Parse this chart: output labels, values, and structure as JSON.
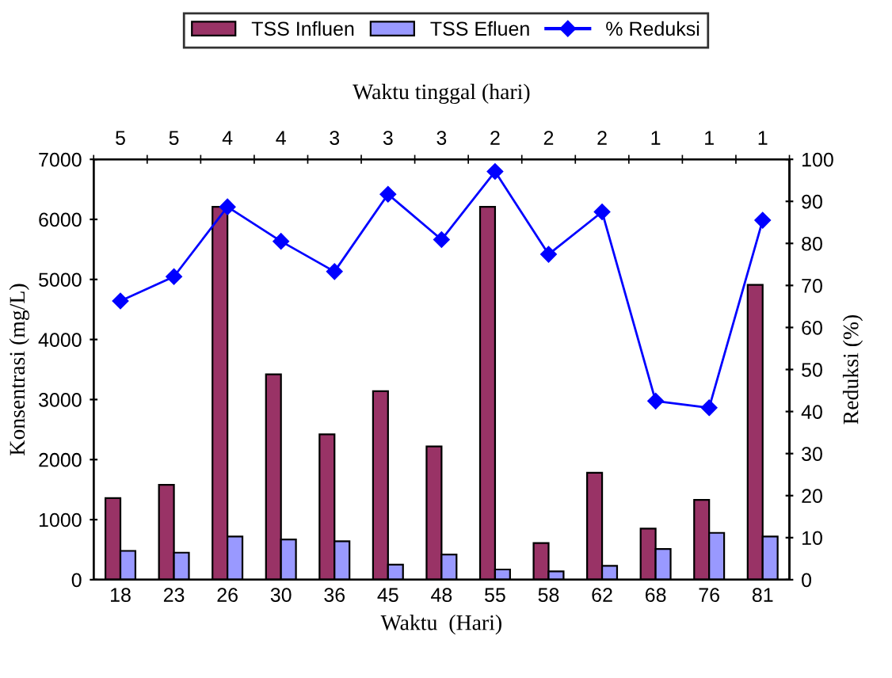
{
  "chart_data": {
    "type": "bar",
    "xlabel": "Waktu  (Hari)",
    "ylabel": "Konsentrasi (mg/L)",
    "y2label": "Reduksi (%)",
    "x2label": "Waktu tinggal (hari)",
    "categories": [
      "18",
      "23",
      "26",
      "30",
      "36",
      "45",
      "48",
      "55",
      "58",
      "62",
      "68",
      "76",
      "81"
    ],
    "series": [
      {
        "name": "TSS Influen",
        "color": "#993366",
        "values": [
          1360,
          1580,
          6210,
          3420,
          2420,
          3140,
          2220,
          6210,
          610,
          1780,
          850,
          1330,
          4910
        ]
      },
      {
        "name": "TSS Efluen",
        "color": "#9999ff",
        "values": [
          480,
          450,
          720,
          670,
          640,
          250,
          420,
          170,
          140,
          230,
          510,
          780,
          720
        ]
      },
      {
        "name": "% Reduksi",
        "type": "line",
        "axis": "y2",
        "color": "#0000ff",
        "marker": "diamond",
        "values": [
          66.3,
          72.1,
          88.7,
          80.5,
          73.3,
          91.7,
          80.9,
          97.1,
          77.4,
          87.5,
          42.5,
          40.9,
          85.5
        ]
      }
    ],
    "ylim": [
      0,
      7000
    ],
    "yticks": [
      0,
      1000,
      2000,
      3000,
      4000,
      5000,
      6000,
      7000
    ],
    "y2lim": [
      0,
      100
    ],
    "y2ticks": [
      0,
      10,
      20,
      30,
      40,
      50,
      60,
      70,
      80,
      90,
      100
    ],
    "annotations": [
      "5",
      "5",
      "4",
      "4",
      "3",
      "3",
      "3",
      "2",
      "2",
      "2",
      "1",
      "1",
      "1"
    ],
    "grid": false,
    "legend": "top"
  }
}
